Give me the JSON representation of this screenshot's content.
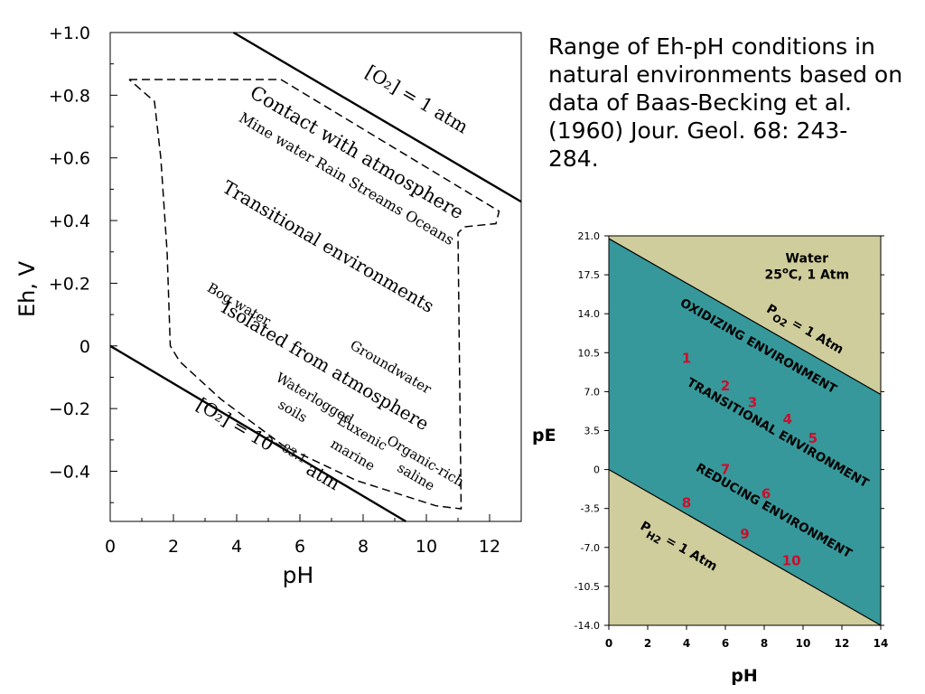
{
  "caption_lines": [
    "Range of Eh-pH conditions in",
    "natural environments based on",
    "data of Baas-Becking et al.",
    "(1960) Jour. Geol. 68: 243-",
    "284."
  ],
  "colors": {
    "teal": "#36989a",
    "tan": "#cfcd9c",
    "red": "#c8102e"
  },
  "chart_data": [
    {
      "type": "line",
      "xlabel": "pH",
      "ylabel": "Eh, V",
      "xlim": [
        0,
        13
      ],
      "ylim": [
        -0.56,
        1.0
      ],
      "xticks": [
        0,
        2,
        4,
        6,
        8,
        10,
        12
      ],
      "xtick_labels": [
        "0",
        "2",
        "4",
        "6",
        "8",
        "10",
        "12"
      ],
      "yticks": [
        1.0,
        0.8,
        0.6,
        0.4,
        0.2,
        0,
        -0.2,
        -0.4
      ],
      "ytick_labels": [
        "+1.0",
        "+0.8",
        "+0.6",
        "+0.4",
        "+0.2",
        "0",
        "−0.2",
        "−0.4"
      ],
      "lines": [
        {
          "style": "solid",
          "points": [
            [
              3.9,
              1.0
            ],
            [
              13.0,
              0.46
            ]
          ]
        },
        {
          "style": "solid",
          "points": [
            [
              0,
              0.0
            ],
            [
              9.35,
              -0.56
            ]
          ]
        }
      ],
      "boundary": [
        [
          0.6,
          0.85
        ],
        [
          5.4,
          0.85
        ],
        [
          12.3,
          0.43
        ],
        [
          12.2,
          0.39
        ],
        [
          11.2,
          0.38
        ],
        [
          11.0,
          0.36
        ],
        [
          11.1,
          -0.52
        ],
        [
          10.3,
          -0.51
        ],
        [
          7.8,
          -0.43
        ],
        [
          5.5,
          -0.32
        ],
        [
          3.5,
          -0.17
        ],
        [
          2.2,
          -0.05
        ],
        [
          1.9,
          0.0
        ],
        [
          1.8,
          0.3
        ],
        [
          1.6,
          0.6
        ],
        [
          1.4,
          0.78
        ],
        [
          0.6,
          0.85
        ]
      ],
      "annotations": [
        {
          "id": "o2-upper",
          "text": "[O₂] = 1 atm",
          "x": 9.6,
          "y": 0.77
        },
        {
          "id": "contact-atmosphere",
          "text": "Contact with atmosphere",
          "x": 7.7,
          "y": 0.6
        },
        {
          "id": "water-types",
          "text": "Mine water  Rain  Streams  Oceans",
          "x": 7.4,
          "y": 0.52
        },
        {
          "id": "transitional",
          "text": "Transitional environments",
          "x": 6.8,
          "y": 0.3
        },
        {
          "id": "bog-water",
          "text": "Bog water",
          "x": 4.0,
          "y": 0.12
        },
        {
          "id": "groundwater",
          "text": "Groundwater",
          "x": 8.8,
          "y": -0.08
        },
        {
          "id": "isolated",
          "text": "Isolated from atmosphere",
          "x": 6.7,
          "y": -0.08
        },
        {
          "id": "waterlogged",
          "text": "Waterlogged",
          "x": 6.4,
          "y": -0.18
        },
        {
          "id": "soils",
          "text": "soils",
          "x": 5.7,
          "y": -0.22
        },
        {
          "id": "euxenic",
          "text": "Euxenic",
          "x": 7.9,
          "y": -0.29
        },
        {
          "id": "marine",
          "text": "marine",
          "x": 7.6,
          "y": -0.36
        },
        {
          "id": "organic-rich",
          "text": "Organic-rich",
          "x": 9.9,
          "y": -0.38
        },
        {
          "id": "saline",
          "text": "saline",
          "x": 9.6,
          "y": -0.43
        },
        {
          "id": "o2-lower",
          "text": "[O₂] = 10",
          "exponent": "−83.1",
          "unit": "atm",
          "x": 4.9,
          "y": -0.33
        }
      ]
    },
    {
      "type": "area",
      "xlabel": "pH",
      "ylabel": "pE",
      "xlim": [
        0,
        14
      ],
      "ylim": [
        -14.0,
        21.0
      ],
      "xticks": [
        0,
        2,
        4,
        6,
        8,
        10,
        12,
        14
      ],
      "xtick_labels": [
        "0",
        "2",
        "4",
        "6",
        "8",
        "10",
        "12",
        "14"
      ],
      "yticks": [
        21.0,
        17.5,
        14.0,
        10.5,
        7.0,
        3.5,
        0,
        -3.5,
        -7.0,
        -10.5,
        -14.0
      ],
      "ytick_labels": [
        "21.0",
        "17.5",
        "14.0",
        "10.5",
        "7.0",
        "3.5",
        "0",
        "-3.5",
        "-7.0",
        "-10.5",
        "-14.0"
      ],
      "lines": [
        {
          "name": "P_O2 = 1 Atm",
          "points": [
            [
              0,
              20.75
            ],
            [
              14,
              6.75
            ]
          ]
        },
        {
          "name": "P_H2 = 1 Atm",
          "points": [
            [
              0,
              0
            ],
            [
              14,
              -14
            ]
          ]
        }
      ],
      "water_label": {
        "title": "Water",
        "temp": "25",
        "sup": "o",
        "rest": "C, 1 Atm",
        "x": 10.2,
        "y": 17.3
      },
      "line_labels": [
        {
          "id": "po2",
          "p": "P",
          "sub": "O2",
          "rest": " = 1 Atm",
          "x": 10.0,
          "y": 12.3
        },
        {
          "id": "ph2",
          "p": "P",
          "sub": "H2",
          "rest": " = 1 Atm",
          "x": 3.5,
          "y": -7.2
        }
      ],
      "zones": [
        {
          "text": "OXIDIZING ENVIRONMENT",
          "x": 7.6,
          "y": 10.8
        },
        {
          "text": "TRANSITIONAL ENVIRONMENT",
          "x": 8.6,
          "y": 3.0
        },
        {
          "text": "REDUCING ENVIRONMENT",
          "x": 8.4,
          "y": -4.0
        }
      ],
      "points": [
        {
          "label": "1",
          "x": 4.0,
          "y": 10.0
        },
        {
          "label": "2",
          "x": 6.0,
          "y": 7.5
        },
        {
          "label": "3",
          "x": 7.4,
          "y": 6.0
        },
        {
          "label": "4",
          "x": 9.2,
          "y": 4.5
        },
        {
          "label": "5",
          "x": 10.5,
          "y": 2.8
        },
        {
          "label": "6",
          "x": 8.1,
          "y": -2.2
        },
        {
          "label": "7",
          "x": 6.0,
          "y": 0
        },
        {
          "label": "8",
          "x": 4.0,
          "y": -3.0
        },
        {
          "label": "9",
          "x": 7.0,
          "y": -5.8
        },
        {
          "label": "10",
          "x": 9.4,
          "y": -8.2
        }
      ]
    }
  ]
}
